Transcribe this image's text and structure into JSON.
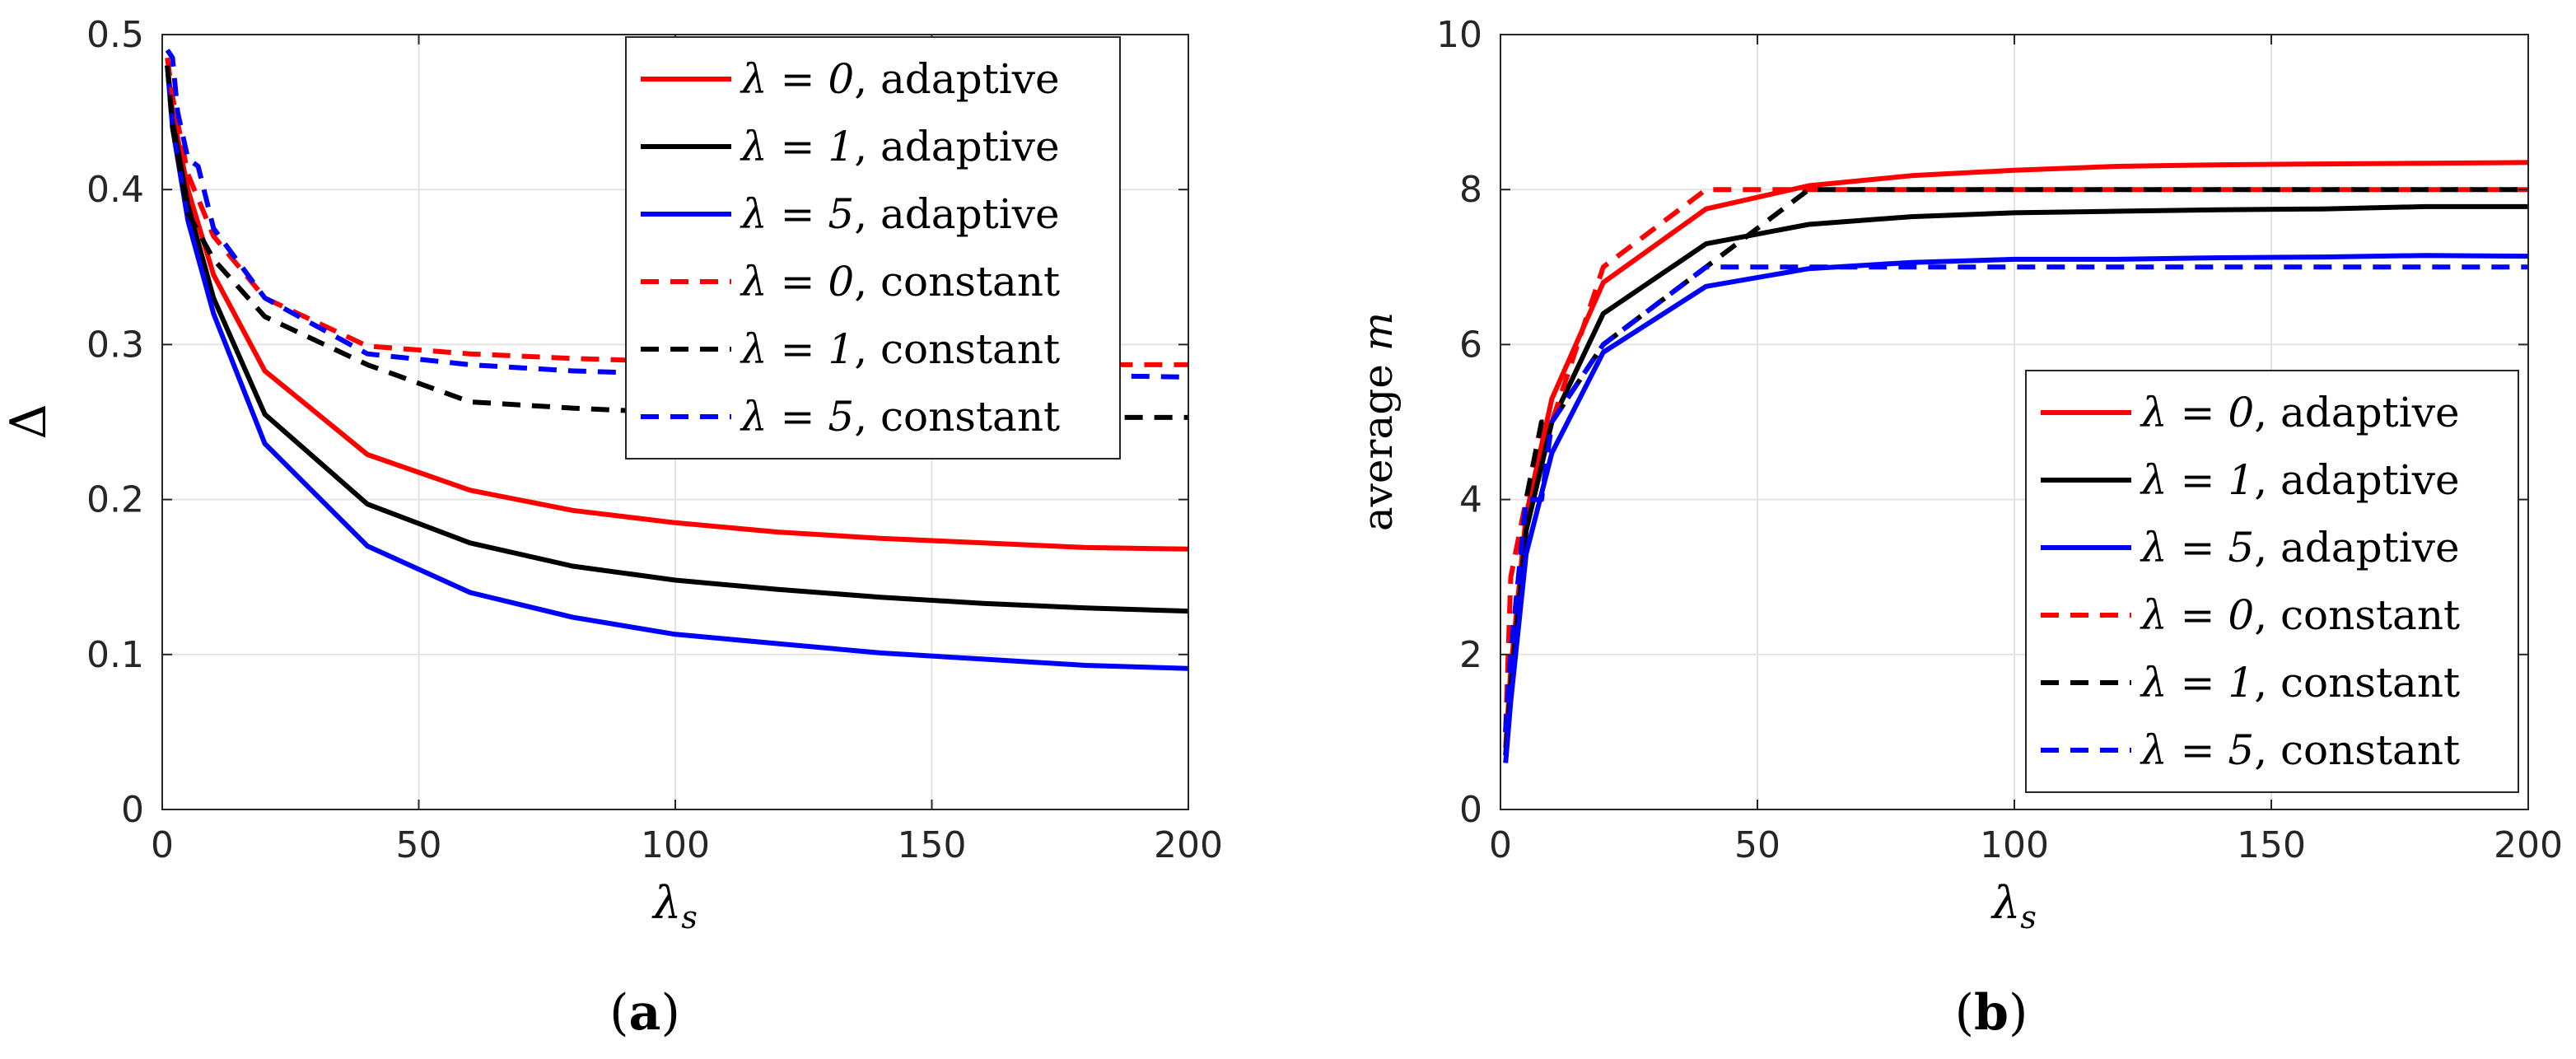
{
  "chart_data": [
    {
      "type": "line",
      "panel_label": "a",
      "ylabel": "Δ",
      "xlabel": "λ",
      "xlabel_sub": "s",
      "xlim": [
        0,
        200
      ],
      "ylim": [
        0,
        0.5
      ],
      "xticks": [
        0,
        50,
        100,
        150,
        200
      ],
      "xtick_labels": [
        "0",
        "50",
        "100",
        "150",
        "200"
      ],
      "yticks": [
        0,
        0.1,
        0.2,
        0.3,
        0.4,
        0.5
      ],
      "ytick_labels": [
        "0",
        "0.1",
        "0.2",
        "0.3",
        "0.4",
        "0.5"
      ],
      "grid": true,
      "legend_position": "top-right",
      "series": [
        {
          "name": "λ = 0, adaptive",
          "lambda_label": "λ = 0",
          "mode_label": "adaptive",
          "color": "#ff0000",
          "dash": "solid",
          "x": [
            1,
            2,
            5,
            10,
            20,
            40,
            60,
            80,
            100,
            120,
            140,
            160,
            180,
            200
          ],
          "y": [
            0.48,
            0.45,
            0.4,
            0.345,
            0.283,
            0.229,
            0.206,
            0.193,
            0.185,
            0.179,
            0.175,
            0.172,
            0.169,
            0.168
          ]
        },
        {
          "name": "λ = 1, adaptive",
          "lambda_label": "λ = 1",
          "mode_label": "adaptive",
          "color": "#000000",
          "dash": "solid",
          "x": [
            1,
            2,
            5,
            10,
            20,
            40,
            60,
            80,
            100,
            120,
            140,
            160,
            180,
            200
          ],
          "y": [
            0.48,
            0.445,
            0.39,
            0.33,
            0.255,
            0.197,
            0.172,
            0.157,
            0.148,
            0.142,
            0.137,
            0.133,
            0.13,
            0.128
          ]
        },
        {
          "name": "λ = 5, adaptive",
          "lambda_label": "λ = 5",
          "mode_label": "adaptive",
          "color": "#0000ff",
          "dash": "solid",
          "x": [
            1,
            2,
            5,
            10,
            20,
            40,
            60,
            80,
            100,
            120,
            140,
            160,
            180,
            200
          ],
          "y": [
            0.48,
            0.44,
            0.38,
            0.32,
            0.236,
            0.17,
            0.14,
            0.124,
            0.113,
            0.107,
            0.101,
            0.097,
            0.093,
            0.091
          ]
        },
        {
          "name": "λ = 0, constant",
          "lambda_label": "λ = 0",
          "mode_label": "constant",
          "color": "#ff0000",
          "dash": "dashed",
          "x": [
            1,
            2,
            5,
            10,
            20,
            40,
            60,
            80,
            100,
            120,
            140,
            160,
            180,
            200
          ],
          "y": [
            0.485,
            0.46,
            0.41,
            0.37,
            0.33,
            0.299,
            0.294,
            0.291,
            0.289,
            0.288,
            0.288,
            0.287,
            0.287,
            0.287
          ]
        },
        {
          "name": "λ = 1, constant",
          "lambda_label": "λ = 1",
          "mode_label": "constant",
          "color": "#000000",
          "dash": "dashed",
          "x": [
            1,
            2,
            5,
            10,
            20,
            40,
            60,
            80,
            100,
            120,
            140,
            160,
            180,
            200
          ],
          "y": [
            0.48,
            0.44,
            0.385,
            0.355,
            0.318,
            0.287,
            0.263,
            0.259,
            0.256,
            0.255,
            0.254,
            0.253,
            0.253,
            0.253
          ]
        },
        {
          "name": "λ = 5, constant",
          "lambda_label": "λ = 5",
          "mode_label": "constant",
          "color": "#0000ff",
          "dash": "dashed",
          "x": [
            1,
            2,
            3,
            5,
            7,
            10,
            20,
            40,
            60,
            80,
            100,
            120,
            140,
            160,
            180,
            200
          ],
          "y": [
            0.49,
            0.485,
            0.45,
            0.42,
            0.415,
            0.375,
            0.33,
            0.294,
            0.287,
            0.283,
            0.281,
            0.28,
            0.28,
            0.28,
            0.28,
            0.279
          ]
        }
      ]
    },
    {
      "type": "line",
      "panel_label": "b",
      "ylabel": "average",
      "ylabel_var": "m",
      "xlabel": "λ",
      "xlabel_sub": "s",
      "xlim": [
        0,
        200
      ],
      "ylim": [
        0,
        10
      ],
      "xticks": [
        0,
        50,
        100,
        150,
        200
      ],
      "xtick_labels": [
        "0",
        "50",
        "100",
        "150",
        "200"
      ],
      "yticks": [
        0,
        2,
        4,
        6,
        8,
        10
      ],
      "ytick_labels": [
        "0",
        "2",
        "4",
        "6",
        "8",
        "10"
      ],
      "grid": true,
      "legend_position": "bottom-right",
      "series": [
        {
          "name": "λ = 0, adaptive",
          "lambda_label": "λ = 0",
          "mode_label": "adaptive",
          "color": "#ff0000",
          "dash": "solid",
          "x": [
            1,
            2,
            5,
            10,
            20,
            40,
            60,
            80,
            100,
            120,
            140,
            160,
            180,
            200
          ],
          "y": [
            0.8,
            1.8,
            3.8,
            5.3,
            6.8,
            7.75,
            8.05,
            8.18,
            8.25,
            8.3,
            8.32,
            8.33,
            8.34,
            8.35
          ]
        },
        {
          "name": "λ = 1, adaptive",
          "lambda_label": "λ = 1",
          "mode_label": "adaptive",
          "color": "#000000",
          "dash": "solid",
          "x": [
            1,
            2,
            5,
            10,
            20,
            40,
            60,
            80,
            100,
            120,
            140,
            160,
            180,
            200
          ],
          "y": [
            0.7,
            1.6,
            3.6,
            5.0,
            6.4,
            7.3,
            7.55,
            7.65,
            7.7,
            7.72,
            7.74,
            7.75,
            7.78,
            7.78
          ]
        },
        {
          "name": "λ = 5, adaptive",
          "lambda_label": "λ = 5",
          "mode_label": "adaptive",
          "color": "#0000ff",
          "dash": "solid",
          "x": [
            1,
            2,
            5,
            10,
            20,
            40,
            60,
            80,
            100,
            120,
            140,
            160,
            180,
            200
          ],
          "y": [
            0.6,
            1.4,
            3.3,
            4.6,
            5.9,
            6.75,
            6.98,
            7.06,
            7.1,
            7.1,
            7.12,
            7.13,
            7.15,
            7.14
          ]
        },
        {
          "name": "λ = 0, constant",
          "lambda_label": "λ = 0",
          "mode_label": "constant",
          "color": "#ff0000",
          "dash": "dashed",
          "x": [
            1,
            2,
            5,
            8,
            10,
            20,
            40,
            60,
            80,
            100,
            150,
            200
          ],
          "y": [
            1,
            3,
            4,
            5,
            5,
            7,
            8,
            8,
            8,
            8,
            8,
            8
          ]
        },
        {
          "name": "λ = 1, constant",
          "lambda_label": "λ = 1",
          "mode_label": "constant",
          "color": "#000000",
          "dash": "dashed",
          "x": [
            1,
            2,
            5,
            8,
            10,
            20,
            40,
            60,
            80,
            100,
            150,
            200
          ],
          "y": [
            1,
            2,
            4,
            5,
            5,
            6,
            7,
            8,
            8,
            8,
            8,
            8
          ]
        },
        {
          "name": "λ = 5, constant",
          "lambda_label": "λ = 5",
          "mode_label": "constant",
          "color": "#0000ff",
          "dash": "dashed",
          "x": [
            1,
            2,
            5,
            8,
            10,
            20,
            40,
            60,
            80,
            100,
            150,
            200
          ],
          "y": [
            1,
            2,
            4,
            4,
            5,
            6,
            7,
            7,
            7,
            7,
            7,
            7
          ]
        }
      ]
    }
  ]
}
